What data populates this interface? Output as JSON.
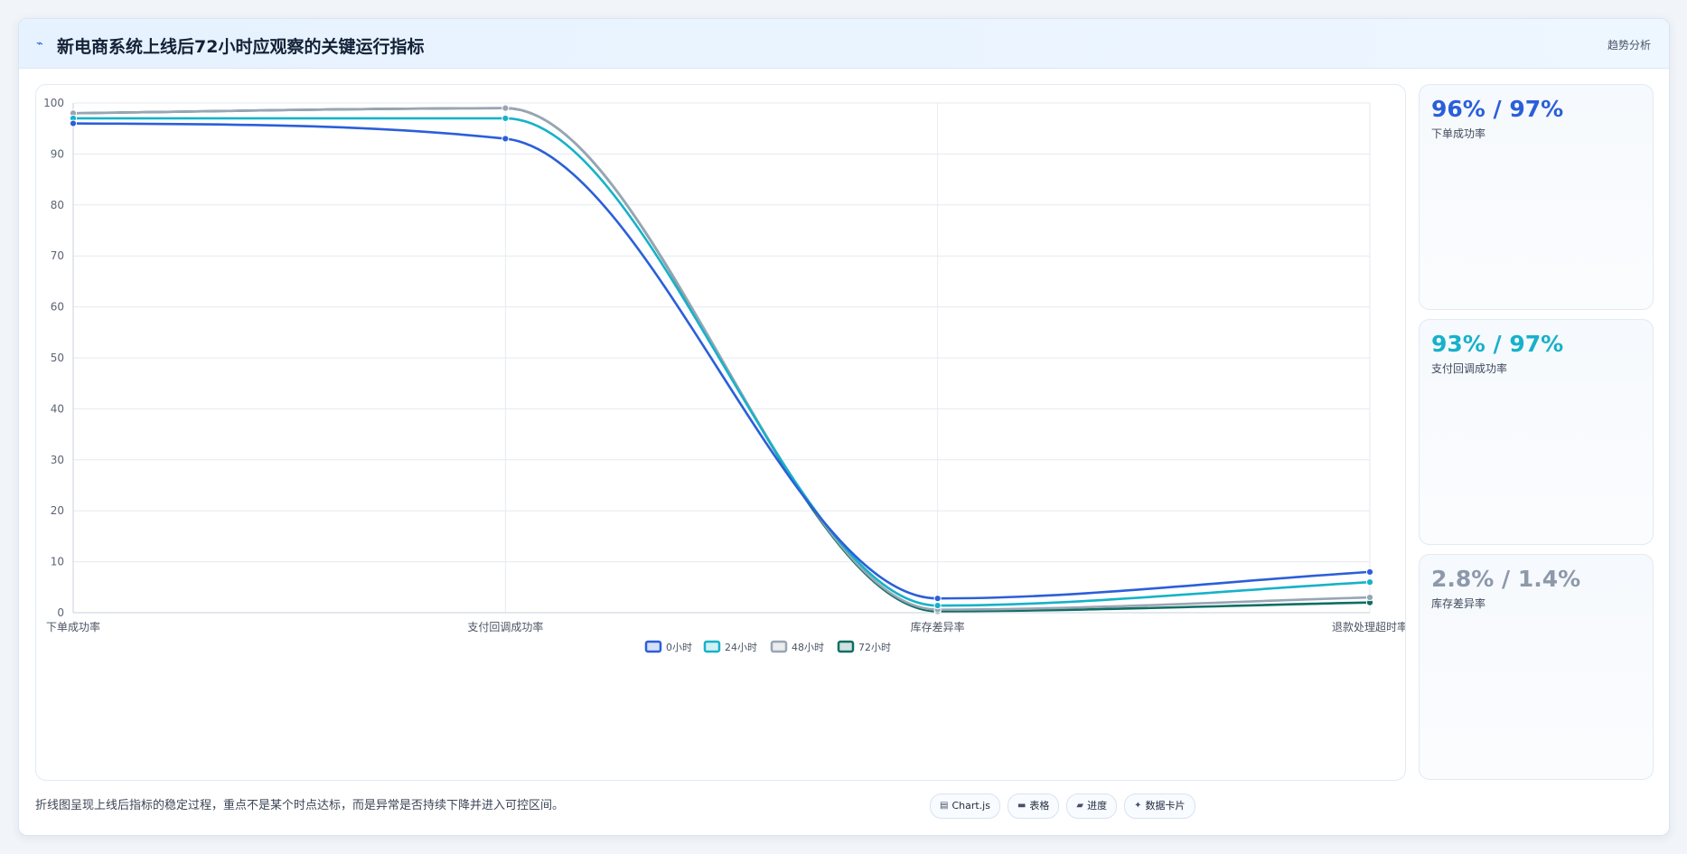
{
  "header": {
    "icon": "trend-line-icon",
    "title": "新电商系统上线后72小时应观察的关键运行指标",
    "action_label": "趋势分析"
  },
  "chart_data": {
    "type": "line",
    "categories": [
      "下单成功率",
      "支付回调成功率",
      "库存差异率",
      "退款处理超时率"
    ],
    "ylim": [
      0,
      100
    ],
    "yticks": [
      0,
      10,
      20,
      30,
      40,
      50,
      60,
      70,
      80,
      90,
      100
    ],
    "grid": true,
    "legend_position": "bottom",
    "series": [
      {
        "name": "0小时",
        "color": "#2b5fd9",
        "values": [
          96,
          93,
          2.8,
          8
        ]
      },
      {
        "name": "24小时",
        "color": "#16b2c9",
        "values": [
          97,
          97,
          1.4,
          6
        ]
      },
      {
        "name": "48小时",
        "color": "#9aa5b4",
        "values": [
          98,
          99,
          0.6,
          3
        ]
      },
      {
        "name": "72小时",
        "color": "#0f6e63",
        "values": [
          98,
          99,
          0.3,
          2
        ]
      }
    ]
  },
  "side_cards": [
    {
      "value": "96% / 97%",
      "label": "下单成功率",
      "color": "#2b5fd9"
    },
    {
      "value": "93% / 97%",
      "label": "支付回调成功率",
      "color": "#16b2c9"
    },
    {
      "value": "2.8% / 1.4%",
      "label": "库存差异率",
      "color": "#8d99ab"
    }
  ],
  "footnote": "折线图呈现上线后指标的稳定过程，重点不是某个时点达标，而是异常是否持续下降并进入可控区间。",
  "tags": [
    {
      "icon": "chart-icon",
      "label": "Chart.js"
    },
    {
      "icon": "table-icon",
      "label": "表格"
    },
    {
      "icon": "progress-icon",
      "label": "进度"
    },
    {
      "icon": "sparkle-icon",
      "label": "数据卡片"
    }
  ]
}
